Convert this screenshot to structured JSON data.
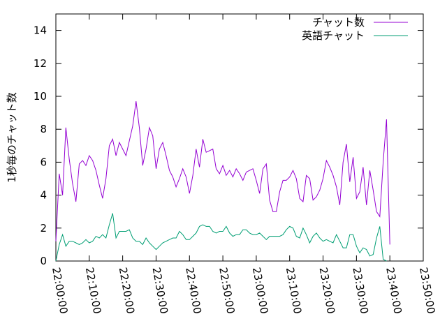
{
  "chart_data": {
    "type": "line",
    "ylabel": "1秒毎のチャット数",
    "xlabel": "",
    "ylim": [
      0,
      15
    ],
    "yticks": [
      0,
      2,
      4,
      6,
      8,
      10,
      12,
      14
    ],
    "xlim": [
      "22:00:00",
      "23:50:00"
    ],
    "xtick_labels": [
      "22:00:00",
      "22:10:00",
      "22:20:00",
      "22:30:00",
      "22:40:00",
      "22:50:00",
      "23:00:00",
      "23:10:00",
      "23:20:00",
      "23:30:00",
      "23:40:00",
      "23:50:00"
    ],
    "legend_position": "top-right",
    "grid": false,
    "series": [
      {
        "name": "チャット数",
        "color": "#9400d3",
        "points": [
          [
            "22:00:00",
            1.2
          ],
          [
            "22:01:00",
            5.3
          ],
          [
            "22:02:00",
            4.0
          ],
          [
            "22:03:00",
            8.1
          ],
          [
            "22:04:00",
            6.2
          ],
          [
            "22:05:00",
            4.7
          ],
          [
            "22:06:00",
            3.6
          ],
          [
            "22:07:00",
            5.9
          ],
          [
            "22:08:00",
            6.1
          ],
          [
            "22:09:00",
            5.8
          ],
          [
            "22:10:00",
            6.4
          ],
          [
            "22:11:00",
            6.1
          ],
          [
            "22:12:00",
            5.5
          ],
          [
            "22:13:00",
            4.6
          ],
          [
            "22:14:00",
            3.8
          ],
          [
            "22:15:00",
            5.0
          ],
          [
            "22:16:00",
            7.0
          ],
          [
            "22:17:00",
            7.4
          ],
          [
            "22:18:00",
            6.4
          ],
          [
            "22:19:00",
            7.2
          ],
          [
            "22:20:00",
            6.8
          ],
          [
            "22:21:00",
            6.4
          ],
          [
            "22:22:00",
            7.3
          ],
          [
            "22:23:00",
            8.2
          ],
          [
            "22:24:00",
            9.7
          ],
          [
            "22:25:00",
            8.1
          ],
          [
            "22:26:00",
            5.8
          ],
          [
            "22:27:00",
            6.8
          ],
          [
            "22:28:00",
            8.1
          ],
          [
            "22:29:00",
            7.6
          ],
          [
            "22:30:00",
            5.6
          ],
          [
            "22:31:00",
            6.8
          ],
          [
            "22:32:00",
            7.2
          ],
          [
            "22:33:00",
            6.4
          ],
          [
            "22:34:00",
            5.5
          ],
          [
            "22:35:00",
            5.1
          ],
          [
            "22:36:00",
            4.5
          ],
          [
            "22:37:00",
            5.0
          ],
          [
            "22:38:00",
            5.6
          ],
          [
            "22:39:00",
            5.1
          ],
          [
            "22:40:00",
            4.1
          ],
          [
            "22:41:00",
            5.2
          ],
          [
            "22:42:00",
            6.8
          ],
          [
            "22:43:00",
            5.7
          ],
          [
            "22:44:00",
            7.4
          ],
          [
            "22:45:00",
            6.6
          ],
          [
            "22:46:00",
            6.7
          ],
          [
            "22:47:00",
            6.8
          ],
          [
            "22:48:00",
            5.6
          ],
          [
            "22:49:00",
            5.3
          ],
          [
            "22:50:00",
            5.8
          ],
          [
            "22:51:00",
            5.2
          ],
          [
            "22:52:00",
            5.5
          ],
          [
            "22:53:00",
            5.1
          ],
          [
            "22:54:00",
            5.6
          ],
          [
            "22:55:00",
            5.3
          ],
          [
            "22:56:00",
            4.9
          ],
          [
            "22:57:00",
            5.4
          ],
          [
            "22:58:00",
            5.5
          ],
          [
            "22:59:00",
            5.6
          ],
          [
            "23:00:00",
            4.9
          ],
          [
            "23:01:00",
            4.1
          ],
          [
            "23:02:00",
            5.6
          ],
          [
            "23:03:00",
            5.9
          ],
          [
            "23:04:00",
            3.7
          ],
          [
            "23:05:00",
            3.0
          ],
          [
            "23:06:00",
            3.0
          ],
          [
            "23:07:00",
            4.2
          ],
          [
            "23:08:00",
            4.9
          ],
          [
            "23:09:00",
            4.9
          ],
          [
            "23:10:00",
            5.1
          ],
          [
            "23:11:00",
            5.5
          ],
          [
            "23:12:00",
            5.0
          ],
          [
            "23:13:00",
            3.8
          ],
          [
            "23:14:00",
            3.6
          ],
          [
            "23:15:00",
            5.2
          ],
          [
            "23:16:00",
            5.0
          ],
          [
            "23:17:00",
            3.7
          ],
          [
            "23:18:00",
            3.9
          ],
          [
            "23:19:00",
            4.3
          ],
          [
            "23:20:00",
            5.0
          ],
          [
            "23:21:00",
            6.1
          ],
          [
            "23:22:00",
            5.7
          ],
          [
            "23:23:00",
            5.2
          ],
          [
            "23:24:00",
            4.5
          ],
          [
            "23:25:00",
            3.4
          ],
          [
            "23:26:00",
            6.0
          ],
          [
            "23:27:00",
            7.1
          ],
          [
            "23:28:00",
            4.8
          ],
          [
            "23:29:00",
            6.3
          ],
          [
            "23:30:00",
            3.8
          ],
          [
            "23:31:00",
            4.2
          ],
          [
            "23:32:00",
            5.7
          ],
          [
            "23:33:00",
            3.4
          ],
          [
            "23:34:00",
            5.5
          ],
          [
            "23:35:00",
            4.3
          ],
          [
            "23:36:00",
            3.0
          ],
          [
            "23:37:00",
            2.7
          ],
          [
            "23:38:00",
            6.0
          ],
          [
            "23:39:00",
            8.6
          ],
          [
            "23:40:00",
            1.0
          ]
        ]
      },
      {
        "name": "英語チャット",
        "color": "#009e73",
        "points": [
          [
            "22:00:00",
            0.0
          ],
          [
            "22:01:00",
            1.0
          ],
          [
            "22:02:00",
            1.6
          ],
          [
            "22:03:00",
            0.9
          ],
          [
            "22:04:00",
            1.2
          ],
          [
            "22:05:00",
            1.2
          ],
          [
            "22:06:00",
            1.1
          ],
          [
            "22:07:00",
            1.0
          ],
          [
            "22:08:00",
            1.1
          ],
          [
            "22:09:00",
            1.3
          ],
          [
            "22:10:00",
            1.1
          ],
          [
            "22:11:00",
            1.2
          ],
          [
            "22:12:00",
            1.5
          ],
          [
            "22:13:00",
            1.4
          ],
          [
            "22:14:00",
            1.6
          ],
          [
            "22:15:00",
            1.4
          ],
          [
            "22:16:00",
            2.2
          ],
          [
            "22:17:00",
            2.9
          ],
          [
            "22:18:00",
            1.4
          ],
          [
            "22:19:00",
            1.8
          ],
          [
            "22:20:00",
            1.8
          ],
          [
            "22:21:00",
            1.8
          ],
          [
            "22:22:00",
            1.9
          ],
          [
            "22:23:00",
            1.4
          ],
          [
            "22:24:00",
            1.2
          ],
          [
            "22:25:00",
            1.2
          ],
          [
            "22:26:00",
            1.0
          ],
          [
            "22:27:00",
            1.4
          ],
          [
            "22:28:00",
            1.1
          ],
          [
            "22:29:00",
            0.9
          ],
          [
            "22:30:00",
            0.7
          ],
          [
            "22:31:00",
            0.9
          ],
          [
            "22:32:00",
            1.1
          ],
          [
            "22:33:00",
            1.2
          ],
          [
            "22:34:00",
            1.3
          ],
          [
            "22:35:00",
            1.4
          ],
          [
            "22:36:00",
            1.4
          ],
          [
            "22:37:00",
            1.8
          ],
          [
            "22:38:00",
            1.6
          ],
          [
            "22:39:00",
            1.3
          ],
          [
            "22:40:00",
            1.3
          ],
          [
            "22:41:00",
            1.5
          ],
          [
            "22:42:00",
            1.7
          ],
          [
            "22:43:00",
            2.1
          ],
          [
            "22:44:00",
            2.2
          ],
          [
            "22:45:00",
            2.1
          ],
          [
            "22:46:00",
            2.1
          ],
          [
            "22:47:00",
            1.8
          ],
          [
            "22:48:00",
            1.7
          ],
          [
            "22:49:00",
            1.8
          ],
          [
            "22:50:00",
            1.8
          ],
          [
            "22:51:00",
            2.1
          ],
          [
            "22:52:00",
            1.7
          ],
          [
            "22:53:00",
            1.5
          ],
          [
            "22:54:00",
            1.6
          ],
          [
            "22:55:00",
            1.6
          ],
          [
            "22:56:00",
            1.9
          ],
          [
            "22:57:00",
            1.9
          ],
          [
            "22:58:00",
            1.7
          ],
          [
            "22:59:00",
            1.6
          ],
          [
            "23:00:00",
            1.6
          ],
          [
            "23:01:00",
            1.7
          ],
          [
            "23:02:00",
            1.5
          ],
          [
            "23:03:00",
            1.3
          ],
          [
            "23:04:00",
            1.5
          ],
          [
            "23:05:00",
            1.5
          ],
          [
            "23:06:00",
            1.5
          ],
          [
            "23:07:00",
            1.5
          ],
          [
            "23:08:00",
            1.6
          ],
          [
            "23:09:00",
            1.9
          ],
          [
            "23:10:00",
            2.1
          ],
          [
            "23:11:00",
            2.0
          ],
          [
            "23:12:00",
            1.5
          ],
          [
            "23:13:00",
            1.4
          ],
          [
            "23:14:00",
            2.0
          ],
          [
            "23:15:00",
            1.6
          ],
          [
            "23:16:00",
            1.1
          ],
          [
            "23:17:00",
            1.5
          ],
          [
            "23:18:00",
            1.7
          ],
          [
            "23:19:00",
            1.4
          ],
          [
            "23:20:00",
            1.2
          ],
          [
            "23:21:00",
            1.3
          ],
          [
            "23:22:00",
            1.2
          ],
          [
            "23:23:00",
            1.1
          ],
          [
            "23:24:00",
            1.6
          ],
          [
            "23:25:00",
            1.2
          ],
          [
            "23:26:00",
            0.8
          ],
          [
            "23:27:00",
            0.8
          ],
          [
            "23:28:00",
            1.6
          ],
          [
            "23:29:00",
            1.6
          ],
          [
            "23:30:00",
            0.9
          ],
          [
            "23:31:00",
            0.5
          ],
          [
            "23:32:00",
            0.8
          ],
          [
            "23:33:00",
            0.7
          ],
          [
            "23:34:00",
            0.3
          ],
          [
            "23:35:00",
            0.4
          ],
          [
            "23:36:00",
            1.4
          ],
          [
            "23:37:00",
            2.1
          ],
          [
            "23:38:00",
            0.1
          ],
          [
            "23:39:00",
            0.0
          ]
        ]
      }
    ]
  }
}
